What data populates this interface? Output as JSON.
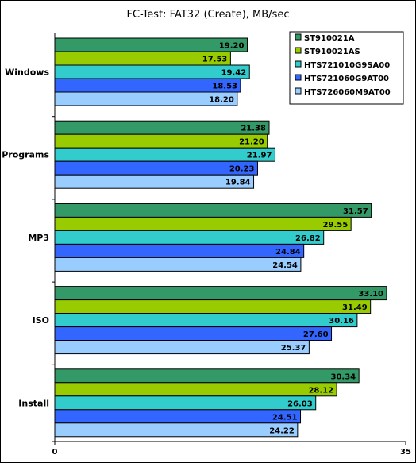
{
  "chart_data": {
    "type": "bar",
    "orientation": "horizontal",
    "title": "FC-Test: FAT32 (Create), MB/sec",
    "categories": [
      "Windows",
      "Programs",
      "MP3",
      "ISO",
      "Install"
    ],
    "series": [
      {
        "name": "ST910021A",
        "color": "#339966",
        "values": [
          19.2,
          21.38,
          31.57,
          33.1,
          30.34
        ]
      },
      {
        "name": "ST910021AS",
        "color": "#99cc00",
        "values": [
          17.53,
          21.2,
          29.55,
          31.49,
          28.12
        ]
      },
      {
        "name": "HTS721010G9SA00",
        "color": "#33cccc",
        "values": [
          19.42,
          21.97,
          26.82,
          30.16,
          26.03
        ]
      },
      {
        "name": "HTS721060G9AT00",
        "color": "#3366ff",
        "values": [
          18.53,
          20.23,
          24.84,
          27.6,
          24.51
        ]
      },
      {
        "name": "HTS726060M9AT00",
        "color": "#99ccff",
        "values": [
          18.2,
          19.84,
          24.54,
          25.37,
          24.22
        ]
      }
    ],
    "xlim": [
      0,
      35
    ],
    "x_ticks": [
      "0",
      "35"
    ],
    "grid": false,
    "legend_position": "top-right"
  }
}
